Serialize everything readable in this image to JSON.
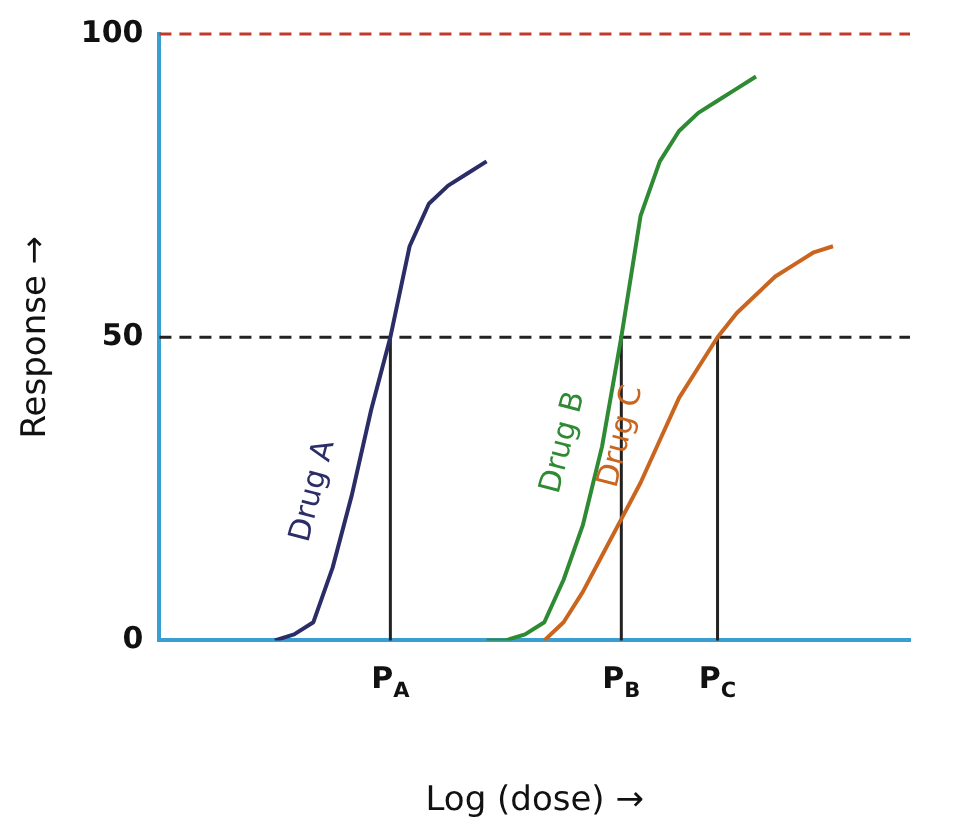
{
  "chart_data": {
    "type": "line",
    "xlabel": "Log (dose) →",
    "ylabel": "Response →",
    "categories": [
      null,
      null,
      null,
      null,
      null,
      null,
      null,
      null,
      null,
      null,
      null,
      null,
      "P$_{A}$",
      null,
      null,
      null,
      null,
      null,
      null,
      null,
      null,
      null,
      null,
      null,
      "P$_{B}$",
      null,
      null,
      null,
      null,
      "P$_{C}$",
      null,
      null,
      null,
      null,
      null,
      null,
      null,
      null,
      null,
      null
    ],
    "series": [
      {
        "name": "Drug A",
        "color": "#2b2d66",
        "values": [
          null,
          null,
          null,
          null,
          null,
          null,
          0,
          1,
          3,
          12,
          24,
          38,
          50,
          65,
          72,
          75,
          77,
          79,
          null,
          null,
          null,
          null,
          null,
          null,
          null,
          null,
          null,
          null,
          null,
          null,
          null,
          null,
          null,
          null,
          null,
          null,
          null,
          null,
          null,
          null
        ]
      },
      {
        "name": "Drug B",
        "color": "#2f8a34",
        "values": [
          null,
          null,
          null,
          null,
          null,
          null,
          null,
          null,
          null,
          null,
          null,
          null,
          null,
          null,
          null,
          null,
          null,
          0,
          0,
          1,
          3,
          10,
          19,
          32,
          50,
          70,
          79,
          84,
          87,
          89,
          91,
          93,
          null,
          null,
          null,
          null,
          null,
          null,
          null,
          null
        ]
      },
      {
        "name": "Drug C",
        "color": "#c9651f",
        "values": [
          null,
          null,
          null,
          null,
          null,
          null,
          null,
          null,
          null,
          null,
          null,
          null,
          null,
          null,
          null,
          null,
          null,
          null,
          null,
          null,
          0,
          3,
          8,
          14,
          20,
          26,
          33,
          40,
          45,
          50,
          54,
          57,
          60,
          62,
          64,
          65,
          null,
          null,
          null,
          null
        ]
      }
    ],
    "ylim": [
      0,
      100
    ],
    "yticks": [
      0,
      50,
      100
    ],
    "grid": false,
    "legend": false,
    "marker": "none",
    "line_style": "solid",
    "ref_lines": [
      {
        "axis": "y",
        "value": 50,
        "color": "#222222",
        "line_style": "dashed"
      },
      {
        "axis": "y",
        "value": 100,
        "color": "#c0392b",
        "line_style": "dashed"
      },
      {
        "axis": "x",
        "value": "P$_{A}$",
        "color": "#222222",
        "line_style": "solid"
      },
      {
        "axis": "x",
        "value": "P$_{B}$",
        "color": "#222222",
        "line_style": "solid"
      },
      {
        "axis": "x",
        "value": "P$_{C}$",
        "color": "#222222",
        "line_style": "solid"
      }
    ]
  }
}
